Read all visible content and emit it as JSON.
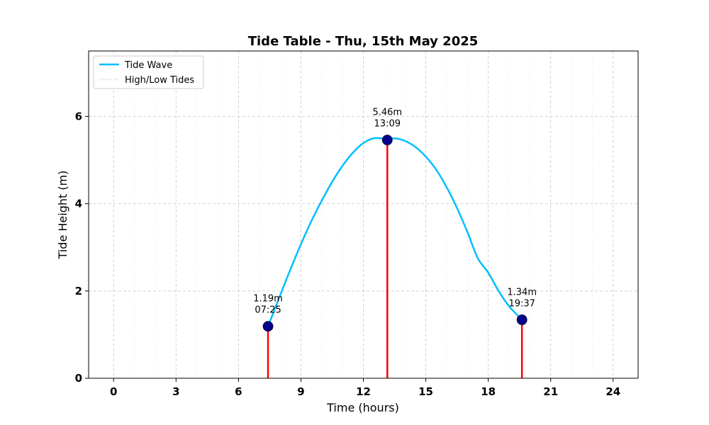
{
  "chart_data": {
    "type": "line",
    "title": "Tide Table - Thu, 15th May 2025",
    "xlabel": "Time (hours)",
    "ylabel": "Tide Height (m)",
    "xlim": [
      -1.2,
      25.2
    ],
    "ylim": [
      0,
      7.5
    ],
    "xticks": [
      0,
      3,
      6,
      9,
      12,
      15,
      18,
      21,
      24
    ],
    "xtick_labels": [
      "0",
      "3",
      "6",
      "9",
      "12",
      "15",
      "18",
      "21",
      "24"
    ],
    "yticks": [
      0,
      2,
      4,
      6
    ],
    "ytick_labels": [
      "0",
      "2",
      "4",
      "6"
    ],
    "grid": true,
    "legend_position": "top-left",
    "series": [
      {
        "name": "Tide Wave",
        "color": "#00bfff",
        "x": [
          7.42,
          8.0,
          8.5,
          9.0,
          9.5,
          10.0,
          10.5,
          11.0,
          11.5,
          12.0,
          12.5,
          13.0,
          13.15,
          13.5,
          14.0,
          14.5,
          15.0,
          15.5,
          16.0,
          16.5,
          17.0,
          17.5,
          18.0,
          18.5,
          19.0,
          19.62
        ],
        "y": [
          1.19,
          1.9,
          2.5,
          3.07,
          3.6,
          4.07,
          4.5,
          4.87,
          5.17,
          5.39,
          5.5,
          5.49,
          5.46,
          5.5,
          5.44,
          5.3,
          5.08,
          4.78,
          4.38,
          3.9,
          3.35,
          2.75,
          2.42,
          2.0,
          1.65,
          1.34
        ]
      }
    ],
    "tides": {
      "name": "High/Low Tides",
      "line_color": "#ff0000",
      "marker_color": "#00008b",
      "points": [
        {
          "time": 7.42,
          "height": 1.19,
          "label_height": "1.19m",
          "label_time": "07:25"
        },
        {
          "time": 13.15,
          "height": 5.46,
          "label_height": "5.46m",
          "label_time": "13:09"
        },
        {
          "time": 19.62,
          "height": 1.34,
          "label_height": "1.34m",
          "label_time": "19:37"
        }
      ]
    }
  }
}
